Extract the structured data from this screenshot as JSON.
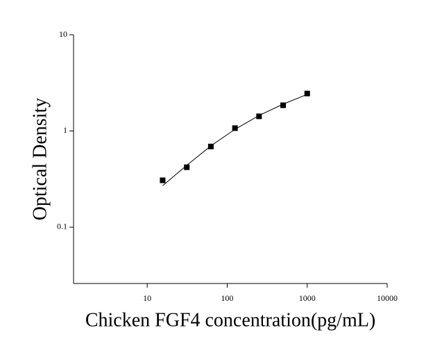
{
  "chart_data": {
    "type": "scatter",
    "x_label": "Chicken FGF4 concentration(pg/mL)",
    "y_label": "Optical Density",
    "x_log": true,
    "y_log": true,
    "xlim": [
      1.2,
      10000
    ],
    "ylim": [
      0.026,
      10
    ],
    "xticks": [
      10,
      100,
      1000,
      10000
    ],
    "yticks": [
      0.1,
      1,
      10
    ],
    "series": [
      {
        "kind": "points",
        "color": "#000000",
        "x": [
          15.6,
          31.25,
          62.5,
          125,
          250,
          500,
          1000
        ],
        "values": [
          0.307,
          0.42,
          0.69,
          1.07,
          1.42,
          1.85,
          2.45
        ]
      },
      {
        "kind": "line",
        "color": "#000000",
        "x": [
          15.6,
          31.25,
          62.5,
          125,
          250,
          500,
          1000
        ],
        "values": [
          0.27,
          0.44,
          0.7,
          1.04,
          1.45,
          1.9,
          2.4
        ]
      }
    ]
  }
}
